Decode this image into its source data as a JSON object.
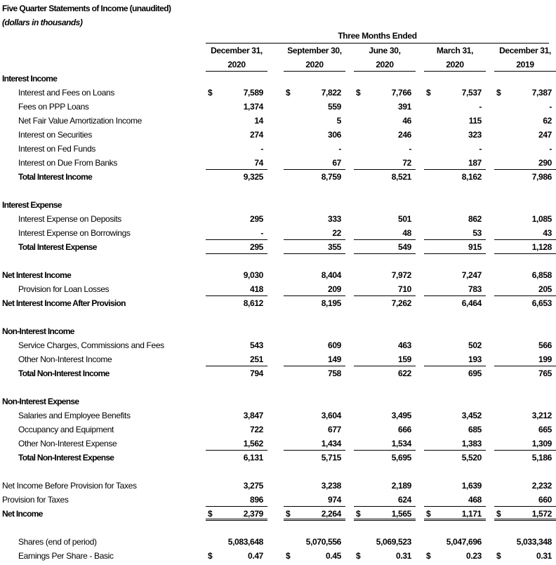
{
  "title": "Five Quarter Statements of Income (unaudited)",
  "subtitle": "(dollars in thousands)",
  "period_header": "Three Months Ended",
  "columns": [
    {
      "line1": "December 31,",
      "line2": "2020"
    },
    {
      "line1": "September 30,",
      "line2": "2020"
    },
    {
      "line1": "June 30,",
      "line2": "2020"
    },
    {
      "line1": "March 31,",
      "line2": "2020"
    },
    {
      "line1": "December 31,",
      "line2": "2019"
    }
  ],
  "rows": [
    {
      "type": "section",
      "label": "Interest Income"
    },
    {
      "type": "item",
      "label": "Interest and Fees on Loans",
      "dollar": true,
      "values": [
        "7,589",
        "7,822",
        "7,766",
        "7,537",
        "7,387"
      ]
    },
    {
      "type": "item",
      "label": "Fees on PPP Loans",
      "values": [
        "1,374",
        "559",
        "391",
        "-",
        "-"
      ]
    },
    {
      "type": "item",
      "label": "Net Fair Value Amortization Income",
      "values": [
        "14",
        "5",
        "46",
        "115",
        "62"
      ]
    },
    {
      "type": "item",
      "label": "Interest on Securities",
      "values": [
        "274",
        "306",
        "246",
        "323",
        "247"
      ]
    },
    {
      "type": "item",
      "label": "Interest on Fed Funds",
      "values": [
        "-",
        "-",
        "-",
        "-",
        "-"
      ]
    },
    {
      "type": "item",
      "label": "Interest on Due From Banks",
      "values": [
        "74",
        "67",
        "72",
        "187",
        "290"
      ],
      "rule": "single"
    },
    {
      "type": "total",
      "label": "Total Interest Income",
      "values": [
        "9,325",
        "8,759",
        "8,521",
        "8,162",
        "7,986"
      ]
    },
    {
      "type": "blank"
    },
    {
      "type": "section",
      "label": "Interest Expense"
    },
    {
      "type": "item",
      "label": "Interest Expense on Deposits",
      "values": [
        "295",
        "333",
        "501",
        "862",
        "1,085"
      ]
    },
    {
      "type": "item",
      "label": "Interest Expense on Borrowings",
      "values": [
        "-",
        "22",
        "48",
        "53",
        "43"
      ],
      "rule": "single"
    },
    {
      "type": "total",
      "label": "Total Interest Expense",
      "values": [
        "295",
        "355",
        "549",
        "915",
        "1,128"
      ],
      "rule": "single"
    },
    {
      "type": "blank"
    },
    {
      "type": "bold",
      "label": "Net Interest Income",
      "values": [
        "9,030",
        "8,404",
        "7,972",
        "7,247",
        "6,858"
      ]
    },
    {
      "type": "item",
      "label": "Provision for Loan Losses",
      "values": [
        "418",
        "209",
        "710",
        "783",
        "205"
      ],
      "rule": "single"
    },
    {
      "type": "bold",
      "label": "Net Interest Income After Provision",
      "values": [
        "8,612",
        "8,195",
        "7,262",
        "6,464",
        "6,653"
      ]
    },
    {
      "type": "blank"
    },
    {
      "type": "section",
      "label": "Non-Interest Income"
    },
    {
      "type": "item",
      "label": "Service Charges, Commissions and Fees",
      "values": [
        "543",
        "609",
        "463",
        "502",
        "566"
      ]
    },
    {
      "type": "item",
      "label": "Other Non-Interest Income",
      "values": [
        "251",
        "149",
        "159",
        "193",
        "199"
      ],
      "rule": "single"
    },
    {
      "type": "total",
      "label": "Total Non-Interest Income",
      "values": [
        "794",
        "758",
        "622",
        "695",
        "765"
      ]
    },
    {
      "type": "blank"
    },
    {
      "type": "section",
      "label": "Non-Interest Expense"
    },
    {
      "type": "item",
      "label": "Salaries and Employee Benefits",
      "values": [
        "3,847",
        "3,604",
        "3,495",
        "3,452",
        "3,212"
      ]
    },
    {
      "type": "item",
      "label": "Occupancy and Equipment",
      "values": [
        "722",
        "677",
        "666",
        "685",
        "665"
      ]
    },
    {
      "type": "item",
      "label": "Other Non-Interest Expense",
      "values": [
        "1,562",
        "1,434",
        "1,534",
        "1,383",
        "1,309"
      ],
      "rule": "single"
    },
    {
      "type": "total",
      "label": "Total Non-Interest Expense",
      "values": [
        "6,131",
        "5,715",
        "5,695",
        "5,520",
        "5,186"
      ]
    },
    {
      "type": "blank"
    },
    {
      "type": "plain",
      "label": "Net Income Before Provision for Taxes",
      "values": [
        "3,275",
        "3,238",
        "2,189",
        "1,639",
        "2,232"
      ]
    },
    {
      "type": "plain",
      "label": "Provision for Taxes",
      "values": [
        "896",
        "974",
        "624",
        "468",
        "660"
      ],
      "rule": "single"
    },
    {
      "type": "bold",
      "label": "Net Income",
      "dollar": true,
      "values": [
        "2,379",
        "2,264",
        "1,565",
        "1,171",
        "1,572"
      ],
      "rule": "double"
    },
    {
      "type": "blank"
    },
    {
      "type": "stat",
      "label": "Shares (end of period)",
      "values": [
        "5,083,648",
        "5,070,556",
        "5,069,523",
        "5,047,696",
        "5,033,348"
      ]
    },
    {
      "type": "stat",
      "label": "Earnings Per Share - Basic",
      "dollar": true,
      "values": [
        "0.47",
        "0.45",
        "0.31",
        "0.23",
        "0.31"
      ]
    }
  ],
  "currency_symbol": "$"
}
